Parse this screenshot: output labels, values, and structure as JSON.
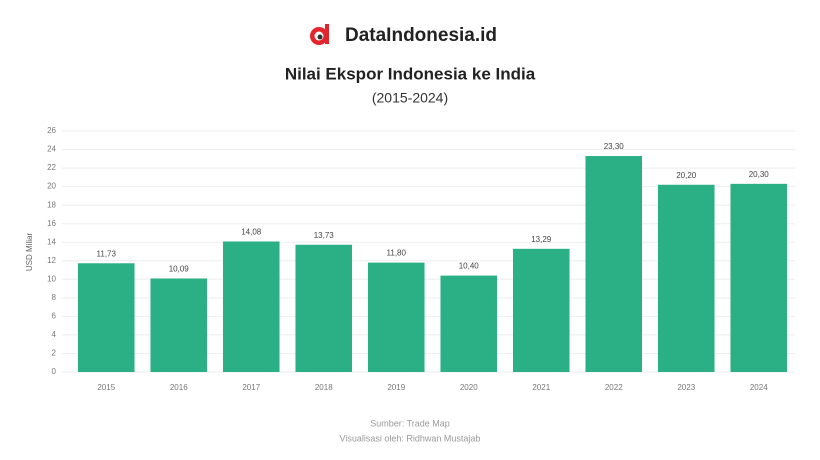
{
  "brand": "DataIndonesia.id",
  "chart_data": {
    "type": "bar",
    "title": "Nilai Ekspor Indonesia ke India",
    "subtitle": "(2015-2024)",
    "y_label": "USD Miliar",
    "categories": [
      "2015",
      "2016",
      "2017",
      "2018",
      "2019",
      "2020",
      "2021",
      "2022",
      "2023",
      "2024"
    ],
    "values": [
      11.73,
      10.09,
      14.08,
      13.73,
      11.8,
      10.4,
      13.29,
      23.3,
      20.2,
      20.3
    ],
    "value_labels": [
      "11,73",
      "10,09",
      "14,08",
      "13,73",
      "11,80",
      "10,40",
      "13,29",
      "23,30",
      "20,20",
      "20,30"
    ],
    "color": "#2bb085",
    "ylim": [
      0,
      26
    ],
    "yticks": [
      0,
      2,
      4,
      6,
      8,
      10,
      12,
      14,
      16,
      18,
      20,
      22,
      24,
      26
    ],
    "grid": true,
    "source": "Sumber: Trade Map",
    "credit": "Visualisasi oleh: Ridhwan Mustajab"
  }
}
